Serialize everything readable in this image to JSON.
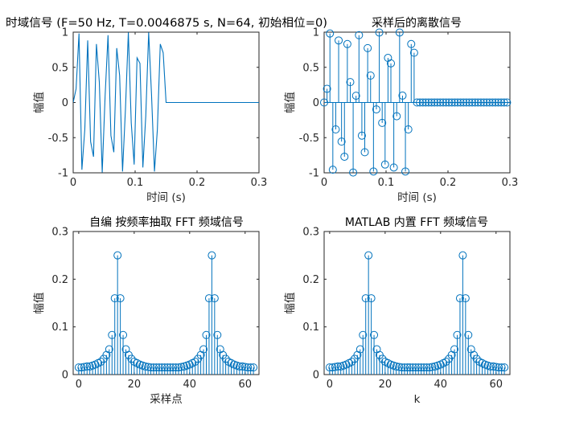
{
  "window": {
    "background": "#ffffff",
    "series_color": "#0072BD",
    "axis_color": "#262626"
  },
  "chart_data": [
    {
      "id": "time-domain",
      "type": "line",
      "title": "时域信号 (F=50 Hz, T=0.0046875 s, N=64, 初始相位=0)",
      "xlabel": "时间 (s)",
      "ylabel": "幅值",
      "xlim": [
        0,
        0.3
      ],
      "ylim": [
        -1,
        1
      ],
      "xticks": [
        0,
        0.1,
        0.2,
        0.3
      ],
      "xtick_labels": [
        "0",
        "0.1",
        "0.2",
        "0.3"
      ],
      "yticks": [
        -1,
        -0.5,
        0,
        0.5,
        1
      ],
      "ytick_labels": [
        "-1",
        "-0.5",
        "0",
        "0.5",
        "1"
      ],
      "sample_interval": 0.0046875,
      "values": [
        0,
        0.195,
        0.981,
        -0.956,
        -0.383,
        0.882,
        -0.556,
        -0.771,
        0.831,
        0.29,
        -0.995,
        0.096,
        0.957,
        -0.471,
        -0.707,
        0.773,
        0.383,
        -0.981,
        -0.098,
        0.995,
        -0.29,
        -0.882,
        0.634,
        0.556,
        -0.924,
        -0.195,
        0.995,
        0.098,
        -0.981,
        -0.383,
        0.831,
        0.707,
        0,
        0,
        0,
        0,
        0,
        0,
        0,
        0,
        0,
        0,
        0,
        0,
        0,
        0,
        0,
        0,
        0,
        0,
        0,
        0,
        0,
        0,
        0,
        0,
        0,
        0,
        0,
        0,
        0,
        0,
        0,
        0
      ],
      "x_end": 0.3
    },
    {
      "id": "sampled",
      "type": "stem",
      "title": "采样后的离散信号",
      "xlabel": "时间 (s)",
      "ylabel": "幅值",
      "xlim": [
        0,
        0.3
      ],
      "ylim": [
        -1,
        1
      ],
      "xticks": [
        0,
        0.1,
        0.2,
        0.3
      ],
      "xtick_labels": [
        "0",
        "0.1",
        "0.2",
        "0.3"
      ],
      "yticks": [
        -1,
        -0.5,
        0,
        0.5,
        1
      ],
      "ytick_labels": [
        "-1",
        "-0.5",
        "0",
        "0.5",
        "1"
      ],
      "sample_interval": 0.0046875,
      "values": [
        0,
        0.195,
        0.981,
        -0.956,
        -0.383,
        0.882,
        -0.556,
        -0.771,
        0.831,
        0.29,
        -0.995,
        0.096,
        0.957,
        -0.471,
        -0.707,
        0.773,
        0.383,
        -0.981,
        -0.098,
        0.995,
        -0.29,
        -0.882,
        0.634,
        0.556,
        -0.924,
        -0.195,
        0.995,
        0.098,
        -0.981,
        -0.383,
        0.831,
        0.707,
        0,
        0,
        0,
        0,
        0,
        0,
        0,
        0,
        0,
        0,
        0,
        0,
        0,
        0,
        0,
        0,
        0,
        0,
        0,
        0,
        0,
        0,
        0,
        0,
        0,
        0,
        0,
        0,
        0,
        0,
        0,
        0
      ]
    },
    {
      "id": "fft-custom",
      "type": "stem",
      "title": "自编 按频率抽取 FFT 频域信号",
      "xlabel": "采样点",
      "ylabel": "幅值",
      "xlim": [
        -2,
        65
      ],
      "ylim": [
        0,
        0.3
      ],
      "xticks": [
        0,
        20,
        40,
        60
      ],
      "xtick_labels": [
        "0",
        "20",
        "40",
        "60"
      ],
      "yticks": [
        0,
        0.1,
        0.2,
        0.3
      ],
      "ytick_labels": [
        "0",
        "0.1",
        "0.2",
        "0.3"
      ],
      "values": [
        0.015,
        0.015,
        0.016,
        0.017,
        0.017,
        0.019,
        0.021,
        0.024,
        0.027,
        0.033,
        0.041,
        0.053,
        0.083,
        0.16,
        0.25,
        0.16,
        0.083,
        0.053,
        0.041,
        0.033,
        0.027,
        0.024,
        0.021,
        0.019,
        0.017,
        0.016,
        0.015,
        0.015,
        0.015,
        0.015,
        0.015,
        0.015,
        0.015,
        0.015,
        0.015,
        0.015,
        0.015,
        0.016,
        0.017,
        0.019,
        0.021,
        0.024,
        0.027,
        0.033,
        0.041,
        0.053,
        0.083,
        0.16,
        0.25,
        0.16,
        0.083,
        0.053,
        0.041,
        0.033,
        0.027,
        0.024,
        0.021,
        0.019,
        0.017,
        0.017,
        0.016,
        0.015,
        0.015,
        0.015
      ]
    },
    {
      "id": "fft-builtin",
      "type": "stem",
      "title": "MATLAB 内置 FFT 频域信号",
      "xlabel": "k",
      "ylabel": "幅值",
      "xlim": [
        -2,
        65
      ],
      "ylim": [
        0,
        0.3
      ],
      "xticks": [
        0,
        20,
        40,
        60
      ],
      "xtick_labels": [
        "0",
        "20",
        "40",
        "60"
      ],
      "yticks": [
        0,
        0.1,
        0.2,
        0.3
      ],
      "ytick_labels": [
        "0",
        "0.1",
        "0.2",
        "0.3"
      ],
      "values": [
        0.015,
        0.015,
        0.016,
        0.017,
        0.017,
        0.019,
        0.021,
        0.024,
        0.027,
        0.033,
        0.041,
        0.053,
        0.083,
        0.16,
        0.25,
        0.16,
        0.083,
        0.053,
        0.041,
        0.033,
        0.027,
        0.024,
        0.021,
        0.019,
        0.017,
        0.016,
        0.015,
        0.015,
        0.015,
        0.015,
        0.015,
        0.015,
        0.015,
        0.015,
        0.015,
        0.015,
        0.015,
        0.016,
        0.017,
        0.019,
        0.021,
        0.024,
        0.027,
        0.033,
        0.041,
        0.053,
        0.083,
        0.16,
        0.25,
        0.16,
        0.083,
        0.053,
        0.041,
        0.033,
        0.027,
        0.024,
        0.021,
        0.019,
        0.017,
        0.017,
        0.016,
        0.015,
        0.015,
        0.015
      ]
    }
  ]
}
